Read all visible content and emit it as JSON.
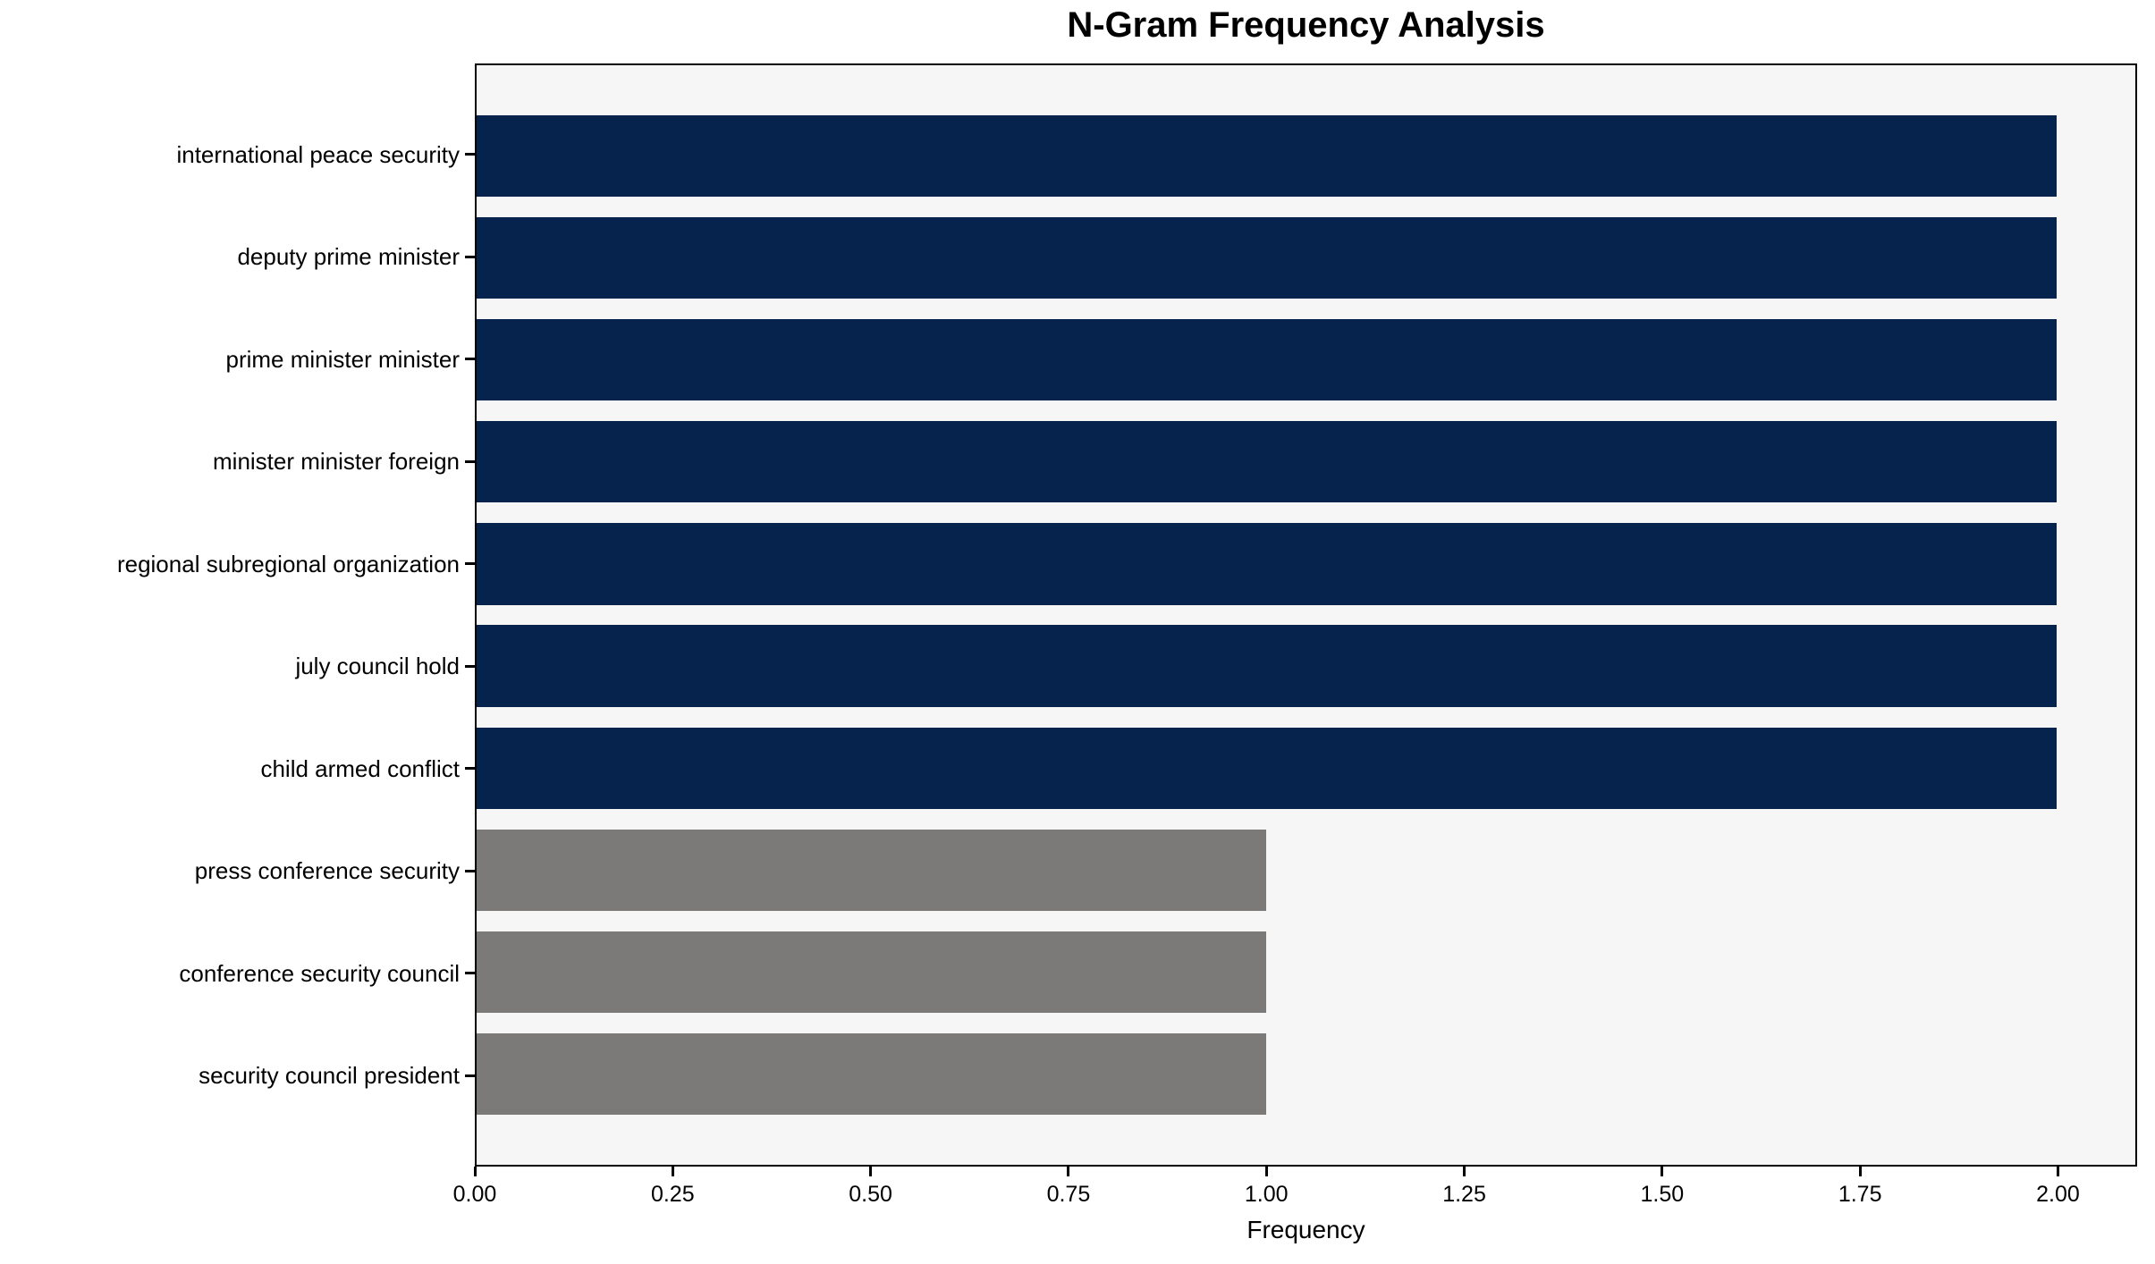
{
  "chart_data": {
    "type": "bar",
    "orientation": "horizontal",
    "title": "N-Gram Frequency Analysis",
    "xlabel": "Frequency",
    "ylabel": "",
    "categories": [
      "international peace security",
      "deputy prime minister",
      "prime minister minister",
      "minister minister foreign",
      "regional subregional organization",
      "july council hold",
      "child armed conflict",
      "press conference security",
      "conference security council",
      "security council president"
    ],
    "values": [
      2,
      2,
      2,
      2,
      2,
      2,
      2,
      1,
      1,
      1
    ],
    "bar_colors": [
      "#05234c",
      "#05234c",
      "#05234c",
      "#05234c",
      "#05234c",
      "#05234c",
      "#05234c",
      "#7b7a78",
      "#7b7a78",
      "#7b7a78"
    ],
    "xticks": {
      "values": [
        0,
        0.25,
        0.5,
        0.75,
        1.0,
        1.25,
        1.5,
        1.75,
        2.0
      ],
      "labels": [
        "0.00",
        "0.25",
        "0.50",
        "0.75",
        "1.00",
        "1.25",
        "1.50",
        "1.75",
        "2.00"
      ]
    },
    "xlim": [
      0,
      2.1
    ],
    "ylim": [
      -0.89,
      9.89
    ],
    "bar_thickness": 0.8,
    "grid": false,
    "legend": null,
    "colors": {
      "bar_high": "#05234c",
      "bar_low": "#7b7a78",
      "plot_background": "#f6f6f6",
      "figure_background": "#ffffff",
      "axis": "#000000",
      "text": "#000000"
    }
  }
}
